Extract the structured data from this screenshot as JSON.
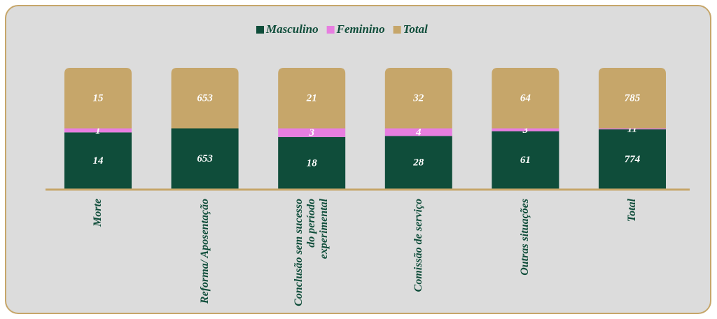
{
  "chart_data": {
    "type": "bar",
    "stacking": "percent",
    "categories": [
      "Morte",
      "Reforma/ Aposentação",
      "Conclusão sem sucesso do período experimental",
      "Comissão de serviço",
      "Outras situações",
      "Total"
    ],
    "series": [
      {
        "name": "Masculino",
        "color": "#0f4d3a",
        "values": [
          14,
          653,
          18,
          28,
          61,
          774
        ]
      },
      {
        "name": "Feminino",
        "color": "#e77ee0",
        "values": [
          1,
          null,
          3,
          4,
          3,
          11
        ]
      },
      {
        "name": "Total",
        "color": "#c6a66a",
        "values": [
          15,
          653,
          21,
          32,
          64,
          785
        ]
      }
    ],
    "legend": "top"
  }
}
